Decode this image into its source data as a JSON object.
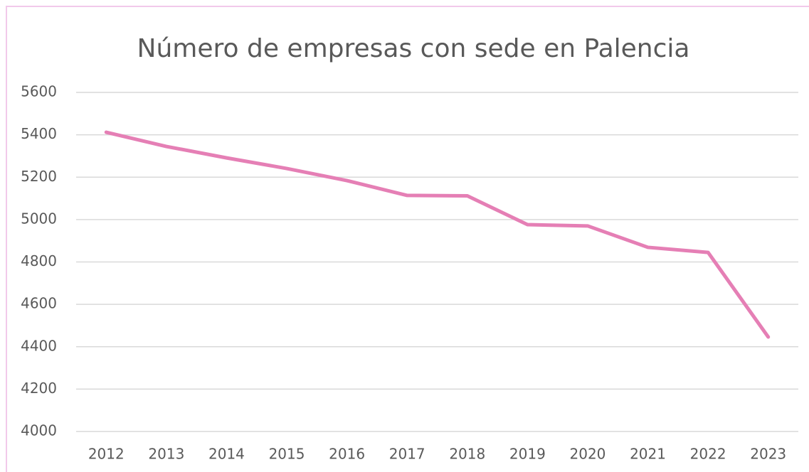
{
  "chart_data": {
    "type": "line",
    "title": "Número de empresas con sede en Palencia",
    "categories": [
      "2012",
      "2013",
      "2014",
      "2015",
      "2016",
      "2017",
      "2018",
      "2019",
      "2020",
      "2021",
      "2022",
      "2023"
    ],
    "values": [
      5412,
      5345,
      5291,
      5241,
      5184,
      5114,
      5112,
      4976,
      4970,
      4869,
      4845,
      4446
    ],
    "color": "#e57fb5",
    "ylim": [
      4000,
      5600
    ],
    "yticks": [
      4000,
      4200,
      4400,
      4600,
      4800,
      5000,
      5200,
      5400,
      5600
    ],
    "grid": true
  }
}
